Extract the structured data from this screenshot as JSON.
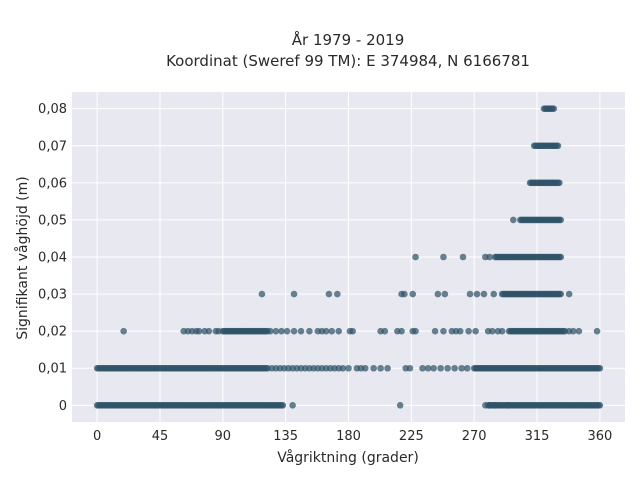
{
  "chart_data": {
    "type": "scatter",
    "title_line1": "År 1979 - 2019",
    "title_line2": "Koordinat (Sweref 99 TM): E 374984, N 6166781",
    "xlabel": "Vågriktning (grader)",
    "ylabel": "Signifikant våghöjd (m)",
    "xlim": [
      -18,
      378
    ],
    "ylim": [
      -0.0045,
      0.0845
    ],
    "x_ticks": [
      0,
      45,
      90,
      135,
      180,
      225,
      270,
      315,
      360
    ],
    "y_ticks": [
      0,
      0.01,
      0.02,
      0.03,
      0.04,
      0.05,
      0.06,
      0.07,
      0.08
    ],
    "y_tick_labels": [
      "0",
      "0,01",
      "0,02",
      "0,03",
      "0,04",
      "0,05",
      "0,06",
      "0,07",
      "0,08"
    ],
    "grid": true,
    "marker_color": "#2f5368",
    "background_color": "#e8e8f0",
    "segments": [
      {
        "y": 0,
        "x_from": 0,
        "x_to": 133
      },
      {
        "y": 0,
        "x_from": 280,
        "x_to": 360
      },
      {
        "y": 0.01,
        "x_from": 0,
        "x_to": 122
      },
      {
        "y": 0.01,
        "x_from": 270,
        "x_to": 360
      },
      {
        "y": 0.02,
        "x_from": 90,
        "x_to": 122
      },
      {
        "y": 0.02,
        "x_from": 295,
        "x_to": 335
      },
      {
        "y": 0.03,
        "x_from": 290,
        "x_to": 332
      },
      {
        "y": 0.04,
        "x_from": 285,
        "x_to": 332
      },
      {
        "y": 0.05,
        "x_from": 303,
        "x_to": 332
      },
      {
        "y": 0.06,
        "x_from": 310,
        "x_to": 331
      },
      {
        "y": 0.07,
        "x_from": 313,
        "x_to": 330
      },
      {
        "y": 0.08,
        "x_from": 320,
        "x_to": 327
      }
    ],
    "points": [
      {
        "y": 0,
        "x": [
          140,
          217,
          278,
          281,
          285,
          294
        ]
      },
      {
        "y": 0.01,
        "x": [
          125,
          128,
          131,
          134,
          137,
          140,
          143,
          146,
          149,
          152,
          155,
          158,
          161,
          164,
          167,
          170,
          173,
          176,
          180,
          186,
          189,
          192,
          198,
          203,
          208,
          221,
          224,
          233,
          237,
          241,
          246,
          251,
          256,
          261,
          265
        ]
      },
      {
        "y": 0.02,
        "x": [
          19,
          62,
          65,
          68,
          71,
          73,
          77,
          80,
          85,
          87,
          124,
          128,
          132,
          136,
          141,
          146,
          152,
          158,
          161,
          164,
          168,
          173,
          181,
          183,
          203,
          206,
          215,
          218,
          226,
          228,
          242,
          248,
          254,
          257,
          260,
          266,
          271,
          280,
          283,
          287,
          290,
          338,
          341,
          345,
          358
        ]
      },
      {
        "y": 0.03,
        "x": [
          118,
          141,
          166,
          172,
          218,
          220,
          226,
          244,
          249,
          267,
          272,
          277,
          284,
          338
        ]
      },
      {
        "y": 0.04,
        "x": [
          228,
          248,
          262,
          278,
          281
        ]
      },
      {
        "y": 0.05,
        "x": [
          298
        ]
      }
    ]
  }
}
